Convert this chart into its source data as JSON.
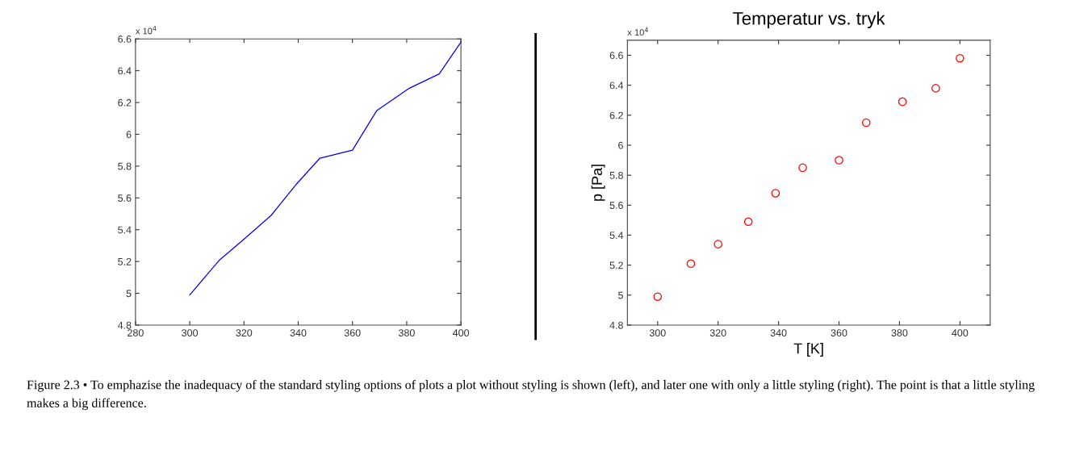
{
  "chart_data": [
    {
      "type": "line",
      "x": [
        300,
        311,
        320,
        330,
        339,
        348,
        360,
        369,
        381,
        392,
        400
      ],
      "series": [
        {
          "color": "#0000ff",
          "values": [
            4.99,
            5.21,
            5.34,
            5.49,
            5.68,
            5.85,
            5.9,
            6.15,
            6.29,
            6.38,
            6.58
          ]
        }
      ],
      "xlim": [
        280,
        400
      ],
      "xticks": [
        280,
        300,
        320,
        340,
        360,
        380,
        400
      ],
      "ylim": [
        4.8,
        6.6
      ],
      "yticks": [
        4.8,
        5,
        5.2,
        5.4,
        5.6,
        5.8,
        6,
        6.2,
        6.4,
        6.6
      ],
      "marker": "none",
      "line_style": "solid",
      "annotations": [
        "x 10$^{4}$",
        "Figure 2.3 • To emphazise the inadequacy of the standard styling options of plots a plot without styling is shown (left), and later one with only a little styling (right). The point is that a little styling makes a big difference."
      ]
    },
    {
      "type": "scatter",
      "title": "Temperatur vs. tryk",
      "xlabel": "T [K]",
      "ylabel": "p [Pa]",
      "x": [
        300,
        311,
        320,
        330,
        339,
        348,
        360,
        369,
        381,
        392,
        400
      ],
      "series": [
        {
          "color": "#ff0000",
          "values": [
            4.99,
            5.21,
            5.34,
            5.49,
            5.68,
            5.85,
            5.9,
            6.15,
            6.29,
            6.38,
            6.58
          ]
        }
      ],
      "xlim": [
        290,
        410
      ],
      "xticks": [
        300,
        320,
        340,
        360,
        380,
        400
      ],
      "ylim": [
        4.8,
        6.7
      ],
      "yticks": [
        4.8,
        5,
        5.2,
        5.4,
        5.6,
        5.8,
        6,
        6.2,
        6.4,
        6.6
      ],
      "marker": "circle",
      "annotations": [
        "x 10$^{4}$"
      ]
    }
  ]
}
